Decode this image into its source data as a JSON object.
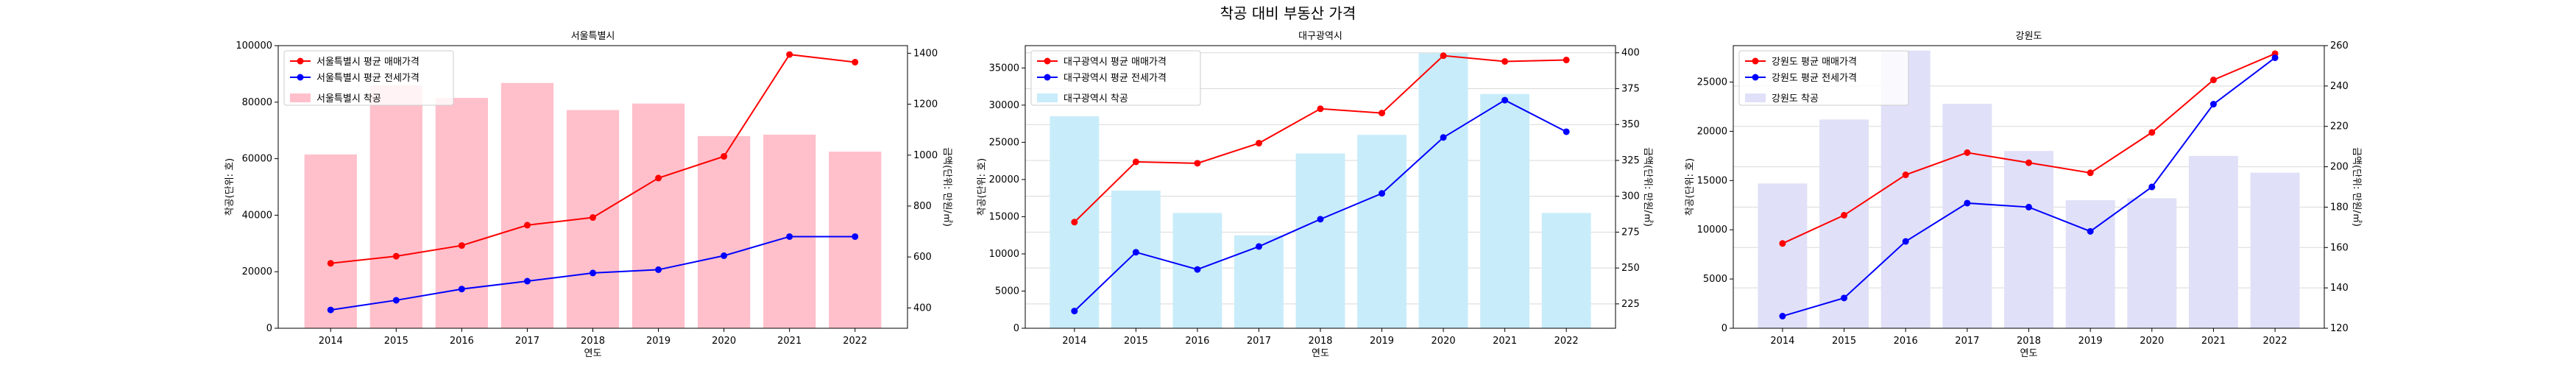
{
  "figure": {
    "suptitle": "착공 대비 부동산 가격"
  },
  "chart_data": [
    {
      "type": "bar+line",
      "title": "서울특별시",
      "xlabel": "연도",
      "ylabel_left": "착공(단위: 호)",
      "ylabel_right": "금액(단위: 만원/㎡)",
      "categories": [
        "2014",
        "2015",
        "2016",
        "2017",
        "2018",
        "2019",
        "2020",
        "2021",
        "2022"
      ],
      "ylim_left": [
        0,
        100000
      ],
      "yticks_left": [
        "0",
        "20000",
        "40000",
        "60000",
        "80000",
        "100000"
      ],
      "ylim_right": [
        320,
        1430
      ],
      "yticks_right": [
        "400",
        "600",
        "800",
        "1000",
        "1200",
        "1400"
      ],
      "grid": false,
      "legend_position": "upper-left",
      "bar_series": {
        "name": "서울특별시 착공",
        "color": "#ffc0cb",
        "values": [
          61500,
          86000,
          81500,
          86800,
          77200,
          79500,
          68000,
          68500,
          62500
        ]
      },
      "line_series": [
        {
          "name": "서울특별시 평균 매매가격",
          "color": "#ff0000",
          "values": [
            575,
            603,
            645,
            725,
            755,
            910,
            995,
            1395,
            1365
          ]
        },
        {
          "name": "서울특별시 평균 전세가격",
          "color": "#0000ff",
          "values": [
            392,
            430,
            474,
            505,
            537,
            550,
            605,
            680,
            680
          ]
        }
      ]
    },
    {
      "type": "bar+line",
      "title": "대구광역시",
      "xlabel": "연도",
      "ylabel_left": "착공(단위: 호)",
      "ylabel_right": "금액(단위: 만원/㎡)",
      "categories": [
        "2014",
        "2015",
        "2016",
        "2017",
        "2018",
        "2019",
        "2020",
        "2021",
        "2022"
      ],
      "ylim_left": [
        0,
        38000
      ],
      "yticks_left": [
        "0",
        "5000",
        "10000",
        "15000",
        "20000",
        "25000",
        "30000",
        "35000"
      ],
      "ylim_right": [
        208,
        405
      ],
      "yticks_right": [
        "225",
        "250",
        "275",
        "300",
        "325",
        "350",
        "375",
        "400"
      ],
      "grid": true,
      "legend_position": "upper-left",
      "bar_series": {
        "name": "대구광역시 착공",
        "color": "#c8ecfa",
        "values": [
          28500,
          18500,
          15500,
          12500,
          23500,
          26000,
          37000,
          31500,
          15500
        ]
      },
      "line_series": [
        {
          "name": "대구광역시 평균 매매가격",
          "color": "#ff0000",
          "values": [
            282,
            324,
            323,
            337,
            361,
            358,
            398,
            394,
            395
          ]
        },
        {
          "name": "대구광역시 평균 전세가격",
          "color": "#0000ff",
          "values": [
            220,
            261,
            249,
            265,
            284,
            302,
            341,
            367,
            345
          ]
        }
      ]
    },
    {
      "type": "bar+line",
      "title": "강원도",
      "xlabel": "연도",
      "ylabel_left": "착공(단위: 호)",
      "ylabel_right": "금액(단위: 만원/㎡)",
      "categories": [
        "2014",
        "2015",
        "2016",
        "2017",
        "2018",
        "2019",
        "2020",
        "2021",
        "2022"
      ],
      "ylim_left": [
        0,
        28700
      ],
      "yticks_left": [
        "0",
        "5000",
        "10000",
        "15000",
        "20000",
        "25000"
      ],
      "ylim_right": [
        120,
        260
      ],
      "yticks_right": [
        "120",
        "140",
        "160",
        "180",
        "200",
        "220",
        "240",
        "260"
      ],
      "grid": true,
      "legend_position": "upper-left",
      "bar_series": {
        "name": "강원도 착공",
        "color": "#e0e0f8",
        "values": [
          14700,
          21200,
          28200,
          22800,
          18000,
          13000,
          13200,
          17500,
          15800
        ]
      },
      "line_series": [
        {
          "name": "강원도 평균 매매가격",
          "color": "#ff0000",
          "values": [
            162,
            176,
            196,
            207,
            202,
            197,
            217,
            243,
            256
          ]
        },
        {
          "name": "강원도 평균 전세가격",
          "color": "#0000ff",
          "values": [
            126,
            135,
            163,
            182,
            180,
            168,
            190,
            231,
            254
          ]
        }
      ]
    }
  ]
}
